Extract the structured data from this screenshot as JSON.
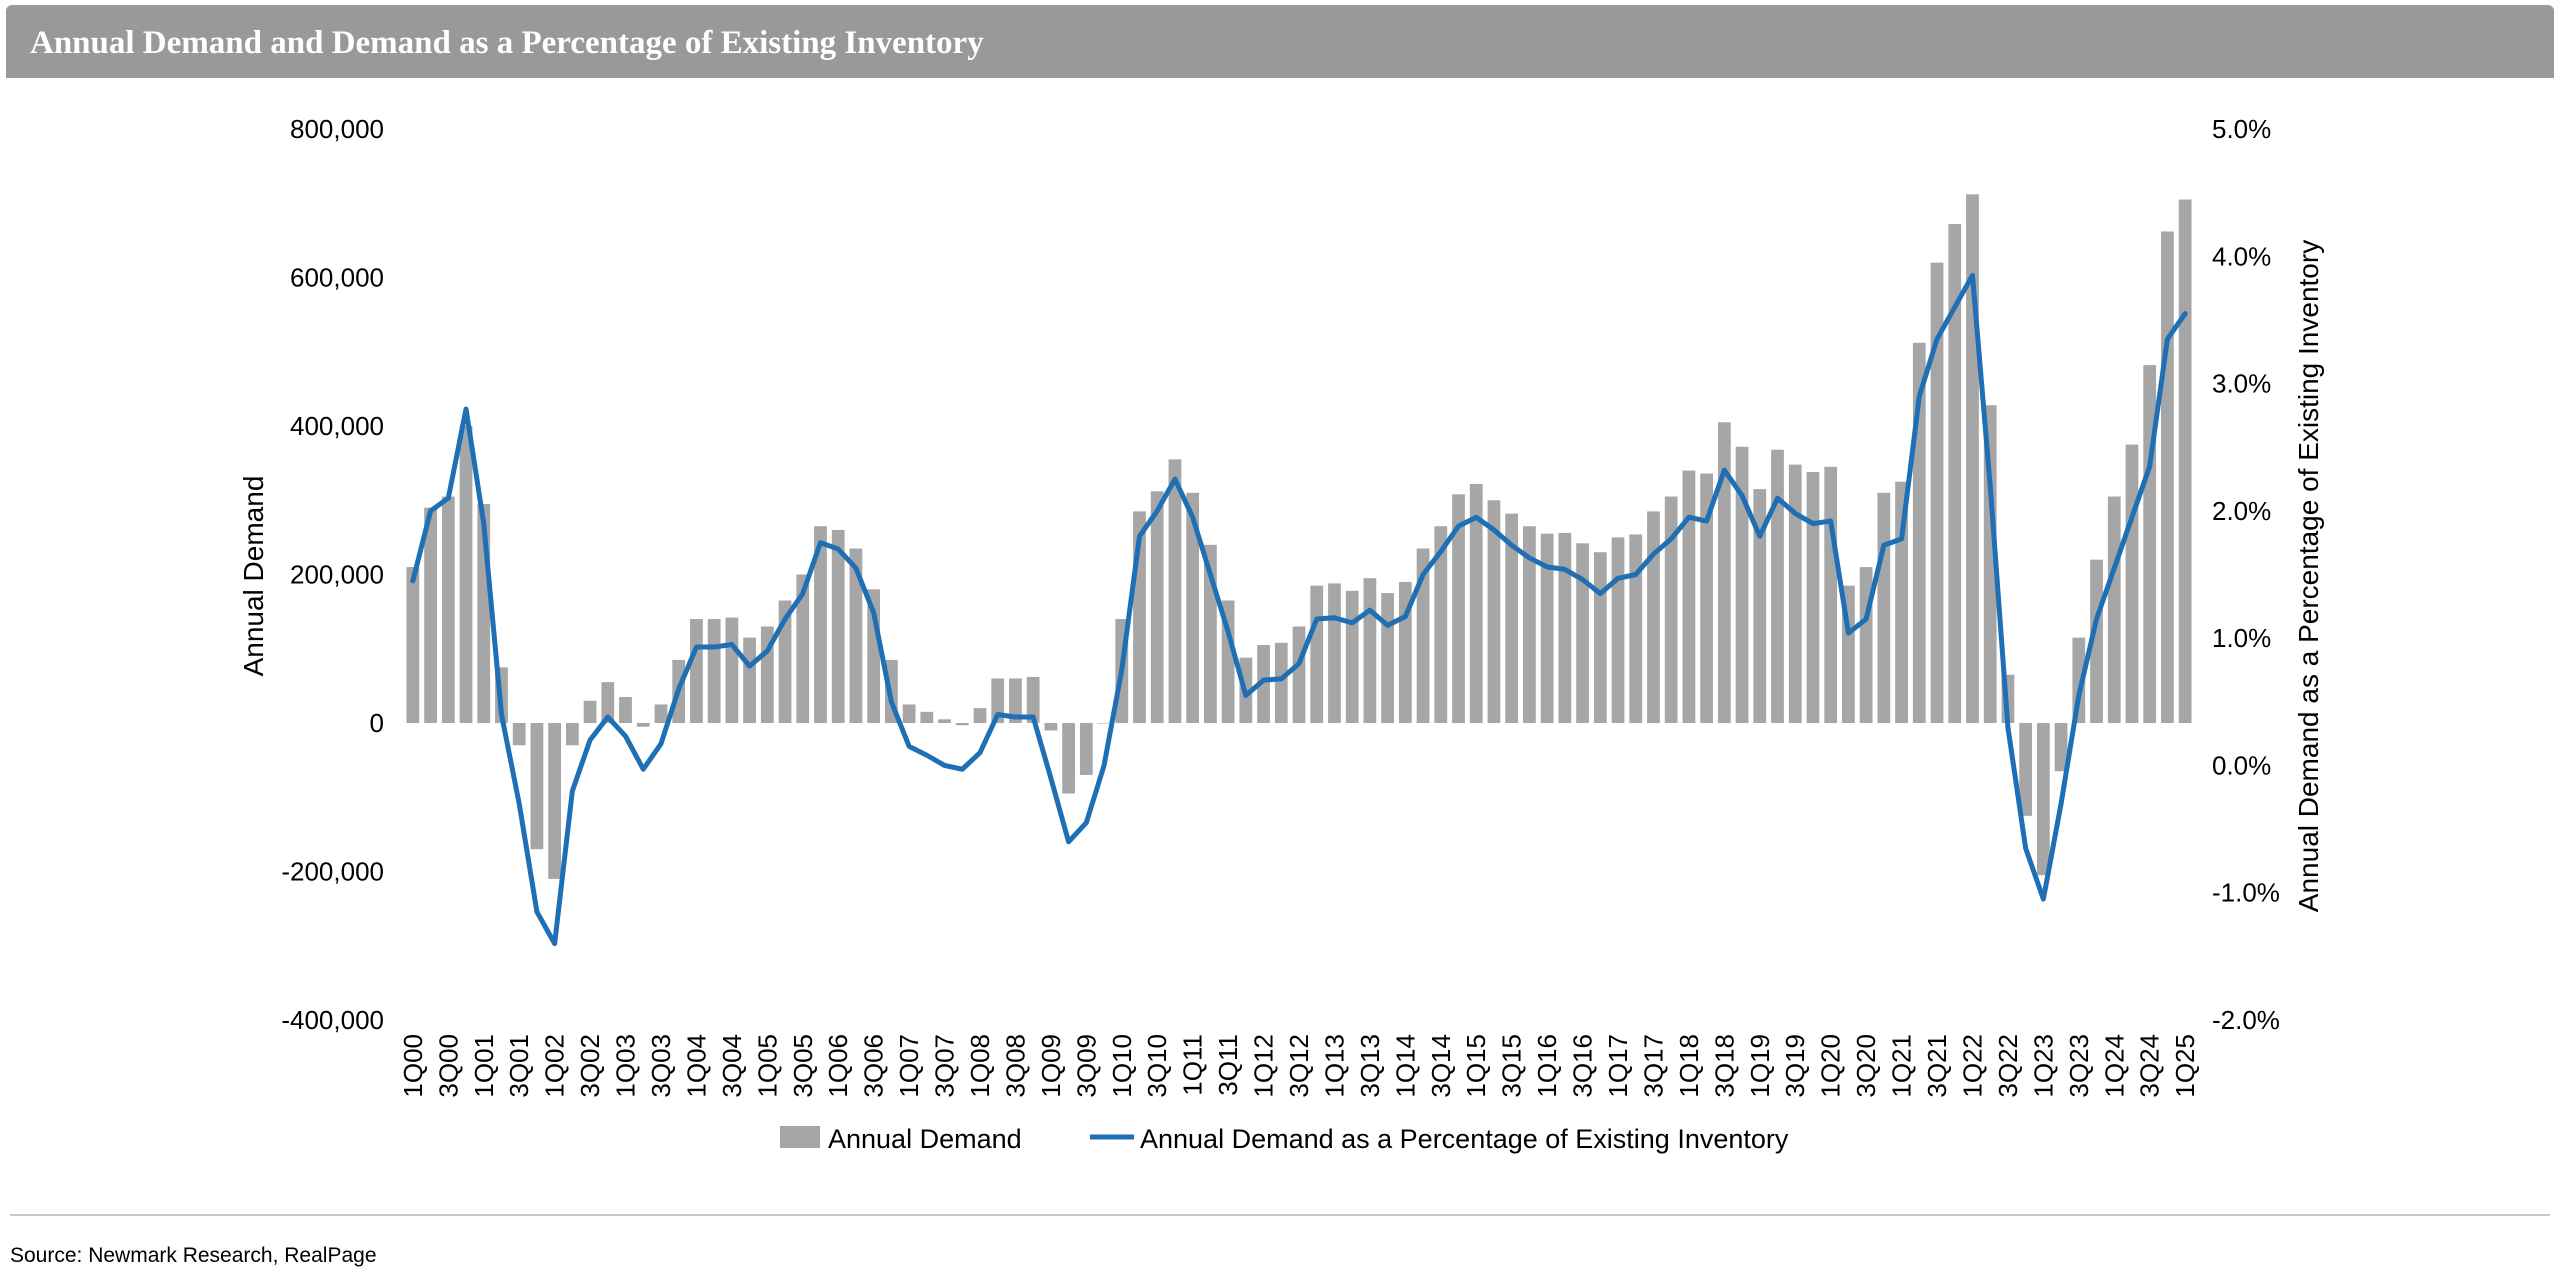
{
  "header": {
    "title": "Annual Demand and Demand as a Percentage of Existing Inventory"
  },
  "footer": {
    "source": "Source: Newmark Research, RealPage"
  },
  "colors": {
    "bar": "#a6a6a6",
    "line": "#1f6fb5",
    "header_bg": "#999999"
  },
  "chart_data": {
    "type": "bar",
    "title": "",
    "categories": [
      "1Q00",
      "2Q00",
      "3Q00",
      "4Q00",
      "1Q01",
      "2Q01",
      "3Q01",
      "4Q01",
      "1Q02",
      "2Q02",
      "3Q02",
      "4Q02",
      "1Q03",
      "2Q03",
      "3Q03",
      "4Q03",
      "1Q04",
      "2Q04",
      "3Q04",
      "4Q04",
      "1Q05",
      "2Q05",
      "3Q05",
      "4Q05",
      "1Q06",
      "2Q06",
      "3Q06",
      "4Q06",
      "1Q07",
      "2Q07",
      "3Q07",
      "4Q07",
      "1Q08",
      "2Q08",
      "3Q08",
      "4Q08",
      "1Q09",
      "2Q09",
      "3Q09",
      "4Q09",
      "1Q10",
      "2Q10",
      "3Q10",
      "4Q10",
      "1Q11",
      "2Q11",
      "3Q11",
      "4Q11",
      "1Q12",
      "2Q12",
      "3Q12",
      "4Q12",
      "1Q13",
      "2Q13",
      "3Q13",
      "4Q13",
      "1Q14",
      "2Q14",
      "3Q14",
      "4Q14",
      "1Q15",
      "2Q15",
      "3Q15",
      "4Q15",
      "1Q16",
      "2Q16",
      "3Q16",
      "4Q16",
      "1Q17",
      "2Q17",
      "3Q17",
      "4Q17",
      "1Q18",
      "2Q18",
      "3Q18",
      "4Q18",
      "1Q19",
      "2Q19",
      "3Q19",
      "4Q19",
      "1Q20",
      "2Q20",
      "3Q20",
      "4Q20",
      "1Q21",
      "2Q21",
      "3Q21",
      "4Q21",
      "1Q22",
      "2Q22",
      "3Q22",
      "4Q22",
      "1Q23",
      "2Q23",
      "3Q23",
      "4Q23",
      "1Q24",
      "2Q24",
      "3Q24",
      "4Q24",
      "1Q25"
    ],
    "tick_labels": [
      "1Q00",
      "3Q00",
      "1Q01",
      "3Q01",
      "1Q02",
      "3Q02",
      "1Q03",
      "3Q03",
      "1Q04",
      "3Q04",
      "1Q05",
      "3Q05",
      "1Q06",
      "3Q06",
      "1Q07",
      "3Q07",
      "1Q08",
      "3Q08",
      "1Q09",
      "3Q09",
      "1Q10",
      "3Q10",
      "1Q11",
      "3Q11",
      "1Q12",
      "3Q12",
      "1Q13",
      "3Q13",
      "1Q14",
      "3Q14",
      "1Q15",
      "3Q15",
      "1Q16",
      "3Q16",
      "1Q17",
      "3Q17",
      "1Q18",
      "3Q18",
      "1Q19",
      "3Q19",
      "1Q20",
      "3Q20",
      "1Q21",
      "3Q21",
      "1Q22",
      "3Q22",
      "1Q23",
      "3Q23",
      "1Q24",
      "3Q24",
      "1Q25"
    ],
    "series": [
      {
        "name": "Annual Demand",
        "type": "bar",
        "axis": "left",
        "values": [
          210000,
          290000,
          305000,
          400000,
          295000,
          75000,
          -30000,
          -170000,
          -210000,
          -30000,
          30000,
          55000,
          35000,
          -5000,
          25000,
          85000,
          140000,
          140000,
          142000,
          115000,
          130000,
          165000,
          200000,
          265000,
          260000,
          235000,
          180000,
          85000,
          25000,
          15000,
          5000,
          -3000,
          20000,
          60000,
          60000,
          62000,
          -10000,
          -95000,
          -70000,
          0,
          140000,
          285000,
          312000,
          355000,
          310000,
          240000,
          165000,
          88000,
          105000,
          108000,
          130000,
          185000,
          188000,
          178000,
          195000,
          175000,
          190000,
          235000,
          265000,
          308000,
          322000,
          300000,
          282000,
          265000,
          255000,
          256000,
          242000,
          230000,
          250000,
          254000,
          285000,
          305000,
          340000,
          336000,
          405000,
          372000,
          315000,
          368000,
          348000,
          338000,
          345000,
          185000,
          210000,
          310000,
          325000,
          512000,
          620000,
          672000,
          712000,
          428000,
          65000,
          -125000,
          -205000,
          -65000,
          115000,
          220000,
          305000,
          375000,
          482000,
          662000,
          705000
        ]
      },
      {
        "name": "Annual Demand as a Percentage of Existing Inventory",
        "type": "line",
        "axis": "right",
        "values": [
          1.45,
          2.0,
          2.1,
          2.8,
          1.9,
          0.4,
          -0.3,
          -1.15,
          -1.4,
          -0.2,
          0.2,
          0.38,
          0.23,
          -0.03,
          0.17,
          0.6,
          0.93,
          0.93,
          0.95,
          0.78,
          0.9,
          1.15,
          1.35,
          1.75,
          1.7,
          1.55,
          1.2,
          0.5,
          0.15,
          0.08,
          0.0,
          -0.03,
          0.1,
          0.4,
          0.38,
          0.38,
          -0.1,
          -0.6,
          -0.45,
          0.0,
          0.75,
          1.8,
          2.0,
          2.25,
          1.95,
          1.5,
          1.05,
          0.55,
          0.67,
          0.68,
          0.8,
          1.15,
          1.16,
          1.12,
          1.22,
          1.1,
          1.17,
          1.5,
          1.68,
          1.88,
          1.95,
          1.85,
          1.73,
          1.63,
          1.56,
          1.54,
          1.46,
          1.35,
          1.47,
          1.5,
          1.66,
          1.78,
          1.95,
          1.92,
          2.32,
          2.12,
          1.8,
          2.1,
          1.98,
          1.9,
          1.92,
          1.04,
          1.15,
          1.73,
          1.78,
          2.9,
          3.35,
          3.6,
          3.85,
          2.2,
          0.3,
          -0.65,
          -1.05,
          -0.3,
          0.55,
          1.15,
          1.55,
          1.95,
          2.35,
          3.35,
          3.55
        ]
      }
    ],
    "y_left": {
      "label": "Annual Demand",
      "min": -400000,
      "max": 800000,
      "step": 200000,
      "ticks": [
        "-400,000",
        "-200,000",
        "0",
        "200,000",
        "400,000",
        "600,000",
        "800,000"
      ]
    },
    "y_right": {
      "label": "Annual Demand as a Percentage of Existing Inventory",
      "min": -2.0,
      "max": 5.0,
      "step": 1.0,
      "ticks": [
        "-2.0%",
        "-1.0%",
        "0.0%",
        "1.0%",
        "2.0%",
        "3.0%",
        "4.0%",
        "5.0%"
      ]
    },
    "legend": {
      "position": "bottom"
    },
    "grid": false
  }
}
